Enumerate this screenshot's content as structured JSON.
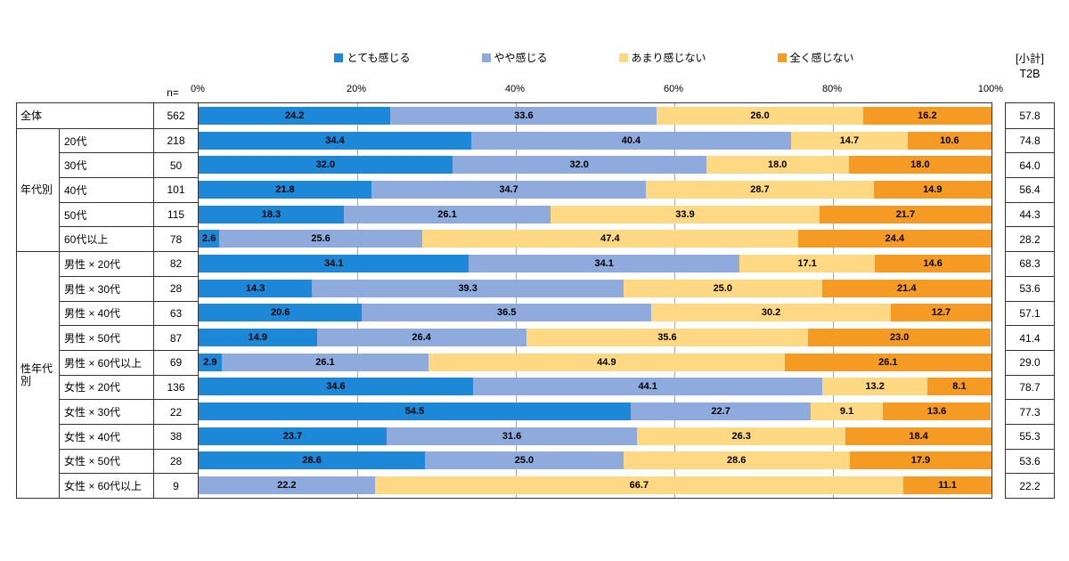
{
  "header": {
    "n_label": "n=",
    "subtotal_label": "[小計]",
    "t2b_label": "T2B"
  },
  "legend": {
    "items": [
      {
        "label": "とても感じる",
        "color": "#1E88D8"
      },
      {
        "label": "やや感じる",
        "color": "#8FAADC"
      },
      {
        "label": "あまり感じない",
        "color": "#FFD883"
      },
      {
        "label": "全く感じない",
        "color": "#F59A23"
      }
    ]
  },
  "chart_data": {
    "type": "bar",
    "stacked": true,
    "orientation": "horizontal",
    "unit": "%",
    "xlim": [
      0,
      100
    ],
    "x_ticks": [
      "0%",
      "20%",
      "40%",
      "60%",
      "80%",
      "100%"
    ],
    "gridlines": true,
    "series": [
      "とても感じる",
      "やや感じる",
      "あまり感じない",
      "全く感じない"
    ],
    "groups": [
      {
        "name": "全体",
        "merged_label": true,
        "rows": [
          {
            "label": "全体",
            "n": 562,
            "values": [
              24.2,
              33.6,
              26.0,
              16.2
            ],
            "t2b": 57.8
          }
        ]
      },
      {
        "name": "年代別",
        "merged_label": false,
        "rows": [
          {
            "label": "20代",
            "n": 218,
            "values": [
              34.4,
              40.4,
              14.7,
              10.6
            ],
            "t2b": 74.8
          },
          {
            "label": "30代",
            "n": 50,
            "values": [
              32.0,
              32.0,
              18.0,
              18.0
            ],
            "t2b": 64.0
          },
          {
            "label": "40代",
            "n": 101,
            "values": [
              21.8,
              34.7,
              28.7,
              14.9
            ],
            "t2b": 56.4
          },
          {
            "label": "50代",
            "n": 115,
            "values": [
              18.3,
              26.1,
              33.9,
              21.7
            ],
            "t2b": 44.3
          },
          {
            "label": "60代以上",
            "n": 78,
            "values": [
              2.6,
              25.6,
              47.4,
              24.4
            ],
            "t2b": 28.2
          }
        ]
      },
      {
        "name": "性年代別",
        "merged_label": false,
        "rows": [
          {
            "label": "男性 × 20代",
            "n": 82,
            "values": [
              34.1,
              34.1,
              17.1,
              14.6
            ],
            "t2b": 68.3
          },
          {
            "label": "男性 × 30代",
            "n": 28,
            "values": [
              14.3,
              39.3,
              25.0,
              21.4
            ],
            "t2b": 53.6
          },
          {
            "label": "男性 × 40代",
            "n": 63,
            "values": [
              20.6,
              36.5,
              30.2,
              12.7
            ],
            "t2b": 57.1
          },
          {
            "label": "男性 × 50代",
            "n": 87,
            "values": [
              14.9,
              26.4,
              35.6,
              23.0
            ],
            "t2b": 41.4
          },
          {
            "label": "男性 × 60代以上",
            "n": 69,
            "values": [
              2.9,
              26.1,
              44.9,
              26.1
            ],
            "t2b": 29.0
          },
          {
            "label": "女性 × 20代",
            "n": 136,
            "values": [
              34.6,
              44.1,
              13.2,
              8.1
            ],
            "t2b": 78.7
          },
          {
            "label": "女性 × 30代",
            "n": 22,
            "values": [
              54.5,
              22.7,
              9.1,
              13.6
            ],
            "t2b": 77.3
          },
          {
            "label": "女性 × 40代",
            "n": 38,
            "values": [
              23.7,
              31.6,
              26.3,
              18.4
            ],
            "t2b": 55.3
          },
          {
            "label": "女性 × 50代",
            "n": 28,
            "values": [
              28.6,
              25.0,
              28.6,
              17.9
            ],
            "t2b": 53.6
          },
          {
            "label": "女性 × 60代以上",
            "n": 9,
            "values": [
              0,
              22.2,
              66.7,
              11.1
            ],
            "t2b": 22.2
          }
        ]
      }
    ]
  }
}
